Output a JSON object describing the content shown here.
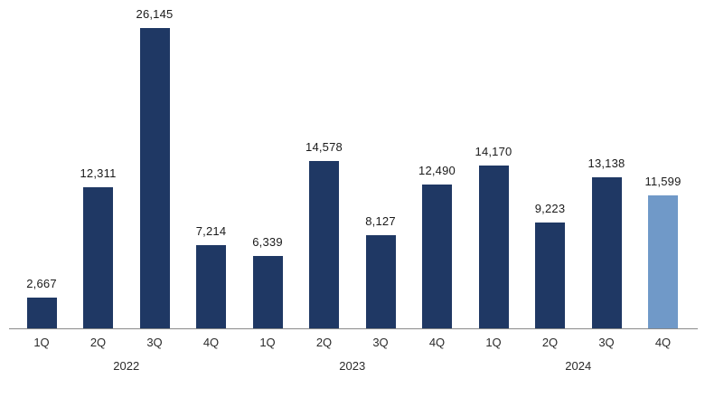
{
  "chart_data": {
    "type": "bar",
    "title": "",
    "xlabel": "",
    "ylabel": "",
    "grid": false,
    "legend": false,
    "ylim": [
      0,
      26145
    ],
    "categories": [
      "1Q",
      "2Q",
      "3Q",
      "4Q",
      "1Q",
      "2Q",
      "3Q",
      "4Q",
      "1Q",
      "2Q",
      "3Q",
      "4Q"
    ],
    "year_groups": [
      {
        "label": "2022",
        "start": 0,
        "count": 4
      },
      {
        "label": "2023",
        "start": 4,
        "count": 4
      },
      {
        "label": "2024",
        "start": 8,
        "count": 4
      }
    ],
    "values": [
      2667,
      12311,
      26145,
      7214,
      6339,
      14578,
      8127,
      12490,
      14170,
      9223,
      13138,
      11599
    ],
    "data_labels": [
      "2,667",
      "12,311",
      "26,145",
      "7,214",
      "6,339",
      "14,578",
      "8,127",
      "12,490",
      "14,170",
      "9,223",
      "13,138",
      "11,599"
    ],
    "highlight_index": 11,
    "colors": {
      "bar": "#1f3864",
      "highlight_bar": "#7099c8",
      "axis_line": "#8a8a8a",
      "value_label_text": "#1a1a1a",
      "tick_text": "#2b2b2b"
    }
  }
}
